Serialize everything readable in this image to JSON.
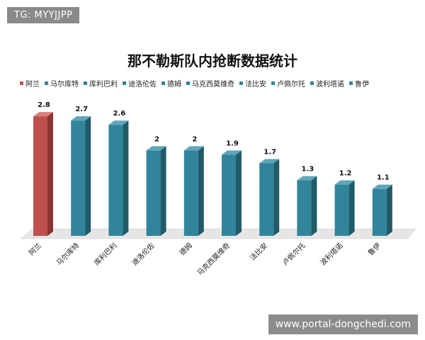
{
  "watermark_top": "TG: MYYJJPP",
  "watermark_bottom": "www.portal-dongchedi.com",
  "chart_data": {
    "type": "bar",
    "title": "那不勒斯队内抢断数据统计",
    "categories": [
      "阿兰",
      "马尔库特",
      "库利巴利",
      "迪洛伦佐",
      "德姆",
      "马克西莫维奇",
      "法比安",
      "卢佩尔托",
      "波利塔诺",
      "鲁伊"
    ],
    "values": [
      2.8,
      2.7,
      2.6,
      2,
      2,
      1.9,
      1.7,
      1.3,
      1.2,
      1.1
    ],
    "value_labels": [
      "2.8",
      "2.7",
      "2.6",
      "2",
      "2",
      "1.9",
      "1.7",
      "1.3",
      "1.2",
      "1.1"
    ],
    "ylim": [
      0,
      3.2
    ],
    "grid": false,
    "legend_position": "top",
    "colors": {
      "highlight": "#c0504d",
      "highlight_side": "#8c3533",
      "highlight_top": "#d9807d",
      "default": "#31849b",
      "default_side": "#215a69",
      "default_top": "#5fa6b9",
      "floor": "#e6e6e6"
    },
    "highlight_index": 0
  }
}
